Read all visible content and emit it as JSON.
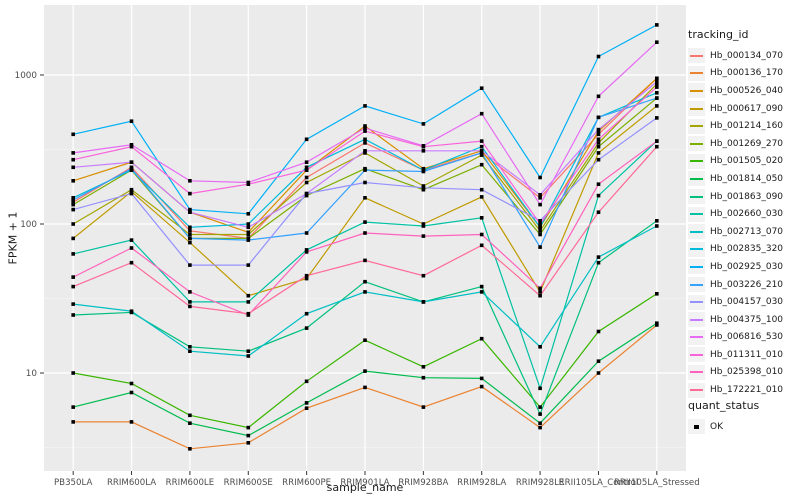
{
  "colors": {
    "panel_bg": "#EBEBEB",
    "grid_major": "#FFFFFF",
    "grid_minor": "#F7F7F7",
    "axis_text": "#4D4D4D",
    "axis_title_text": "#1A1A1A",
    "tick_mark": "#333333",
    "point_marker": "#000000",
    "legend_key_bg": "#F2F2F2",
    "page_bg": "#FFFFFF"
  },
  "chart_data": {
    "type": "line",
    "title": "",
    "xlabel": "sample_name",
    "ylabel": "FPKM + 1",
    "y_scale": "log10",
    "ylim": [
      2.2,
      2820
    ],
    "y_ticks": [
      10,
      100,
      1000
    ],
    "y_tick_labels": [
      "10",
      "100",
      "1000"
    ],
    "y_minor_ticks": [
      3.162,
      31.62,
      316.2
    ],
    "grid": true,
    "legend_position": "right",
    "legend_title": "tracking_id",
    "point_legend": {
      "title": "quant_status",
      "entries": [
        {
          "label": "OK",
          "marker": "black-square"
        }
      ]
    },
    "x_categories": [
      "PB350LA",
      "RRIM600LA",
      "RRIM600LE",
      "RRIM600SE",
      "RRIM600PE",
      "RRIM901LA",
      "RRIM928BA",
      "RRIM928LA",
      "RRIM928LE",
      "RRII105LA_Control",
      "RRII105LA_Stressed"
    ],
    "series": [
      {
        "name": "Hb_000134_070",
        "color": "#F8766D",
        "values": [
          140,
          240,
          90,
          80,
          205,
          350,
          230,
          300,
          150,
          400,
          950
        ]
      },
      {
        "name": "Hb_000136_170",
        "color": "#EA8331",
        "values": [
          4.7,
          4.7,
          3.1,
          3.4,
          5.8,
          8.0,
          5.9,
          8.1,
          4.3,
          10,
          21
        ]
      },
      {
        "name": "Hb_000526_040",
        "color": "#D89000",
        "values": [
          195,
          260,
          120,
          88,
          230,
          455,
          235,
          310,
          95,
          420,
          950
        ]
      },
      {
        "name": "Hb_000617_090",
        "color": "#C09B00",
        "values": [
          80,
          165,
          75,
          33,
          43,
          150,
          100,
          152,
          35,
          300,
          620
        ]
      },
      {
        "name": "Hb_001214_160",
        "color": "#A3A500",
        "values": [
          100,
          170,
          85,
          85,
          190,
          300,
          180,
          290,
          90,
          350,
          870
        ]
      },
      {
        "name": "Hb_001269_270",
        "color": "#7CAE00",
        "values": [
          135,
          230,
          80,
          80,
          155,
          235,
          170,
          250,
          85,
          330,
          700
        ]
      },
      {
        "name": "Hb_001505_020",
        "color": "#39B600",
        "values": [
          10,
          8.5,
          5.2,
          4.3,
          8.8,
          16.6,
          11,
          17,
          5.9,
          19,
          34
        ]
      },
      {
        "name": "Hb_001814_050",
        "color": "#00BB4E",
        "values": [
          5.9,
          7.4,
          4.6,
          3.8,
          6.3,
          10.3,
          9.3,
          9.2,
          4.6,
          12,
          21.6
        ]
      },
      {
        "name": "Hb_001863_090",
        "color": "#00BF7D",
        "values": [
          24.5,
          25.5,
          15,
          14,
          20,
          41,
          30,
          38,
          5.3,
          55,
          105
        ]
      },
      {
        "name": "Hb_002660_030",
        "color": "#00C1A3",
        "values": [
          63,
          78,
          30,
          30,
          67,
          103,
          97,
          110,
          7.9,
          155,
          360
        ]
      },
      {
        "name": "Hb_002713_070",
        "color": "#00BFC4",
        "values": [
          29,
          26,
          14,
          13,
          25,
          35,
          30,
          35,
          15,
          60,
          97
        ]
      },
      {
        "name": "Hb_002835_320",
        "color": "#00BBDA",
        "values": [
          150,
          230,
          95,
          100,
          240,
          370,
          230,
          330,
          95,
          520,
          760
        ]
      },
      {
        "name": "Hb_002925_030",
        "color": "#00B0F6",
        "values": [
          400,
          490,
          125,
          117,
          370,
          620,
          470,
          815,
          205,
          1330,
          2170
        ]
      },
      {
        "name": "Hb_003226_210",
        "color": "#35A2FF",
        "values": [
          145,
          235,
          80,
          78,
          87,
          230,
          225,
          300,
          70,
          520,
          700
        ]
      },
      {
        "name": "Hb_004157_030",
        "color": "#9590FF",
        "values": [
          125,
          160,
          53,
          53,
          160,
          190,
          175,
          170,
          105,
          270,
          515
        ]
      },
      {
        "name": "Hb_004375_100",
        "color": "#C77CFF",
        "values": [
          240,
          260,
          120,
          95,
          160,
          310,
          310,
          310,
          157,
          430,
          900
        ]
      },
      {
        "name": "Hb_006816_530",
        "color": "#E76BF3",
        "values": [
          300,
          340,
          195,
          190,
          260,
          440,
          335,
          550,
          135,
          720,
          1660
        ]
      },
      {
        "name": "Hb_011311_010",
        "color": "#FA62DB",
        "values": [
          270,
          330,
          160,
          185,
          230,
          420,
          330,
          360,
          100,
          370,
          830
        ]
      },
      {
        "name": "Hb_025398_010",
        "color": "#FF62BC",
        "values": [
          44,
          69,
          35,
          24.5,
          65,
          87,
          83,
          85,
          37,
          185,
          360
        ]
      },
      {
        "name": "Hb_172221_010",
        "color": "#FF6A98",
        "values": [
          38,
          55,
          28,
          25,
          45,
          57,
          45,
          72,
          33,
          120,
          330
        ]
      }
    ]
  }
}
